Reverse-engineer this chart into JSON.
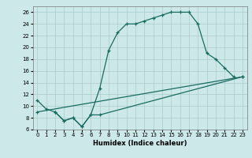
{
  "xlabel": "Humidex (Indice chaleur)",
  "bg_color": "#cce8e8",
  "grid_color": "#aacccc",
  "line_color": "#1a6b60",
  "xlim": [
    -0.5,
    23.5
  ],
  "ylim": [
    6,
    27
  ],
  "xticks": [
    0,
    1,
    2,
    3,
    4,
    5,
    6,
    7,
    8,
    9,
    10,
    11,
    12,
    13,
    14,
    15,
    16,
    17,
    18,
    19,
    20,
    21,
    22,
    23
  ],
  "yticks": [
    6,
    8,
    10,
    12,
    14,
    16,
    18,
    20,
    22,
    24,
    26
  ],
  "line1_x": [
    0,
    1,
    2,
    3,
    4,
    5,
    6,
    7,
    8,
    9,
    10,
    11,
    12,
    13,
    14,
    15,
    16,
    17,
    18,
    19,
    20,
    21,
    22
  ],
  "line1_y": [
    11,
    9.5,
    9,
    7.5,
    8,
    6.5,
    8.5,
    13,
    19.5,
    22.5,
    24,
    24,
    24.5,
    25,
    25.5,
    26,
    26,
    26,
    24,
    19,
    18,
    16.5,
    15
  ],
  "line2_x": [
    0,
    23
  ],
  "line2_y": [
    9,
    15
  ],
  "line3_x": [
    2,
    3,
    4,
    5,
    6,
    7,
    23
  ],
  "line3_y": [
    9,
    7.5,
    8,
    6.5,
    8.5,
    8.5,
    15
  ],
  "xlabel_fontsize": 6,
  "tick_fontsize": 5,
  "linewidth": 0.9,
  "markersize": 3.5
}
